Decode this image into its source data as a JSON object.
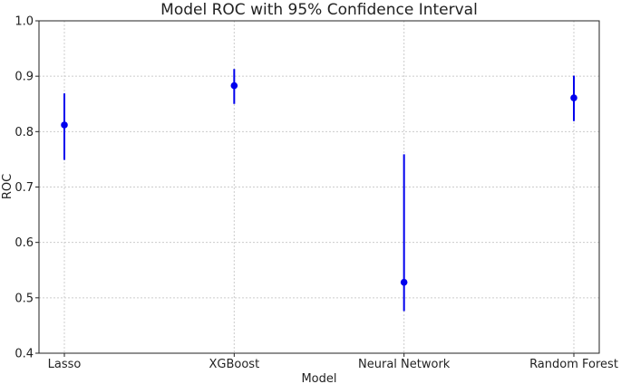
{
  "chart_data": {
    "type": "errorbar",
    "title": "Model ROC with 95% Confidence Interval",
    "xlabel": "Model",
    "ylabel": "ROC",
    "ylim": [
      0.4,
      1.0
    ],
    "yticks": [
      "0.4",
      "0.5",
      "0.6",
      "0.7",
      "0.8",
      "0.9",
      "1.0"
    ],
    "ytick_values": [
      0.4,
      0.5,
      0.6,
      0.7,
      0.8,
      0.9,
      1.0
    ],
    "grid": true,
    "categories": [
      "Lasso",
      "XGBoost",
      "Neural Network",
      "Random Forest"
    ],
    "values": [
      0.812,
      0.883,
      0.528,
      0.861
    ],
    "ci_lower": [
      0.749,
      0.85,
      0.476,
      0.819
    ],
    "ci_upper": [
      0.869,
      0.913,
      0.759,
      0.901
    ],
    "color": "#0000ee"
  }
}
